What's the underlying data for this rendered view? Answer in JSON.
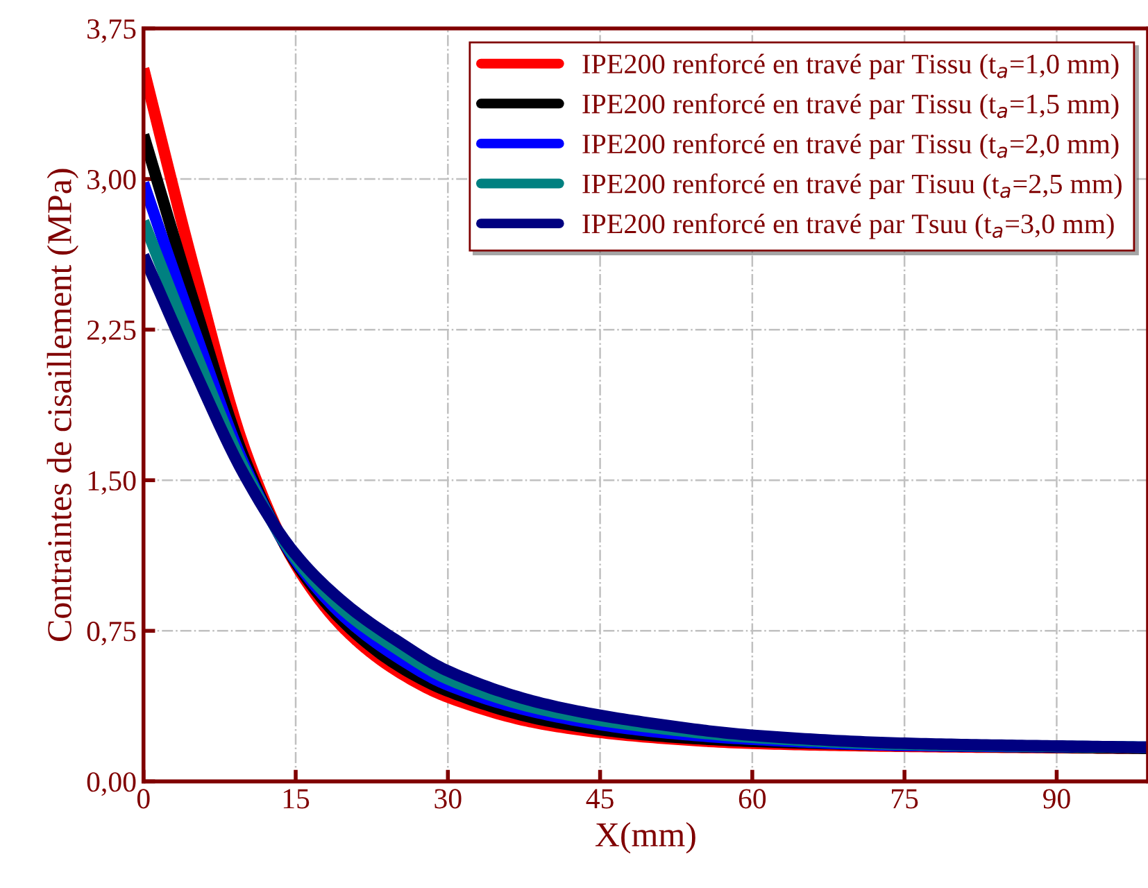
{
  "chart_data": {
    "type": "line",
    "xlabel": "X(mm)",
    "ylabel": "Contraintes de cisaillement (MPa)",
    "x": [
      0,
      5,
      10,
      15,
      20,
      25,
      30,
      40,
      50,
      60,
      75,
      99
    ],
    "series": [
      {
        "name": "IPE200 renforcé en travé par Tissu (t$_{a}$=1,0 mm)",
        "color": "#ff0000",
        "values": [
          3.55,
          2.55,
          1.65,
          1.08,
          0.75,
          0.55,
          0.42,
          0.28,
          0.22,
          0.19,
          0.175,
          0.165
        ]
      },
      {
        "name": "IPE200 renforcé en travé par Tissu (t$_{a}$=1,5 mm)",
        "color": "#000000",
        "values": [
          3.22,
          2.38,
          1.6,
          1.09,
          0.78,
          0.58,
          0.45,
          0.3,
          0.23,
          0.2,
          0.18,
          0.165
        ]
      },
      {
        "name": "IPE200 renforcé en travé par Tissu (t$_{a}$=2,0 mm)",
        "color": "#0000ff",
        "values": [
          2.98,
          2.25,
          1.57,
          1.1,
          0.81,
          0.62,
          0.48,
          0.33,
          0.25,
          0.21,
          0.18,
          0.17
        ]
      },
      {
        "name": "IPE200 renforcé en travé par Tisuu (t$_{a}$=2,5 mm)",
        "color": "#008080",
        "values": [
          2.79,
          2.15,
          1.55,
          1.11,
          0.84,
          0.66,
          0.51,
          0.35,
          0.27,
          0.22,
          0.185,
          0.17
        ]
      },
      {
        "name": "IPE200 renforcé en travé par Tsuu (t$_{a}$=3,0 mm)",
        "color": "#000080",
        "values": [
          2.62,
          2.05,
          1.52,
          1.13,
          0.88,
          0.7,
          0.55,
          0.38,
          0.29,
          0.23,
          0.19,
          0.17
        ]
      }
    ],
    "xlim": [
      0,
      99
    ],
    "xticks": [
      0,
      15,
      30,
      45,
      60,
      75,
      90
    ],
    "ylim": [
      0,
      3.75
    ],
    "yticks": [
      {
        "value": 0,
        "label": "0,00"
      },
      {
        "value": 0.75,
        "label": "0,75"
      },
      {
        "value": 1.5,
        "label": "1,50"
      },
      {
        "value": 2.25,
        "label": "2,25"
      },
      {
        "value": 3.0,
        "label": "3,00"
      },
      {
        "value": 3.75,
        "label": "3,75"
      }
    ],
    "grid": true,
    "legend": "top right",
    "marker": "none",
    "line_style": "solid"
  }
}
